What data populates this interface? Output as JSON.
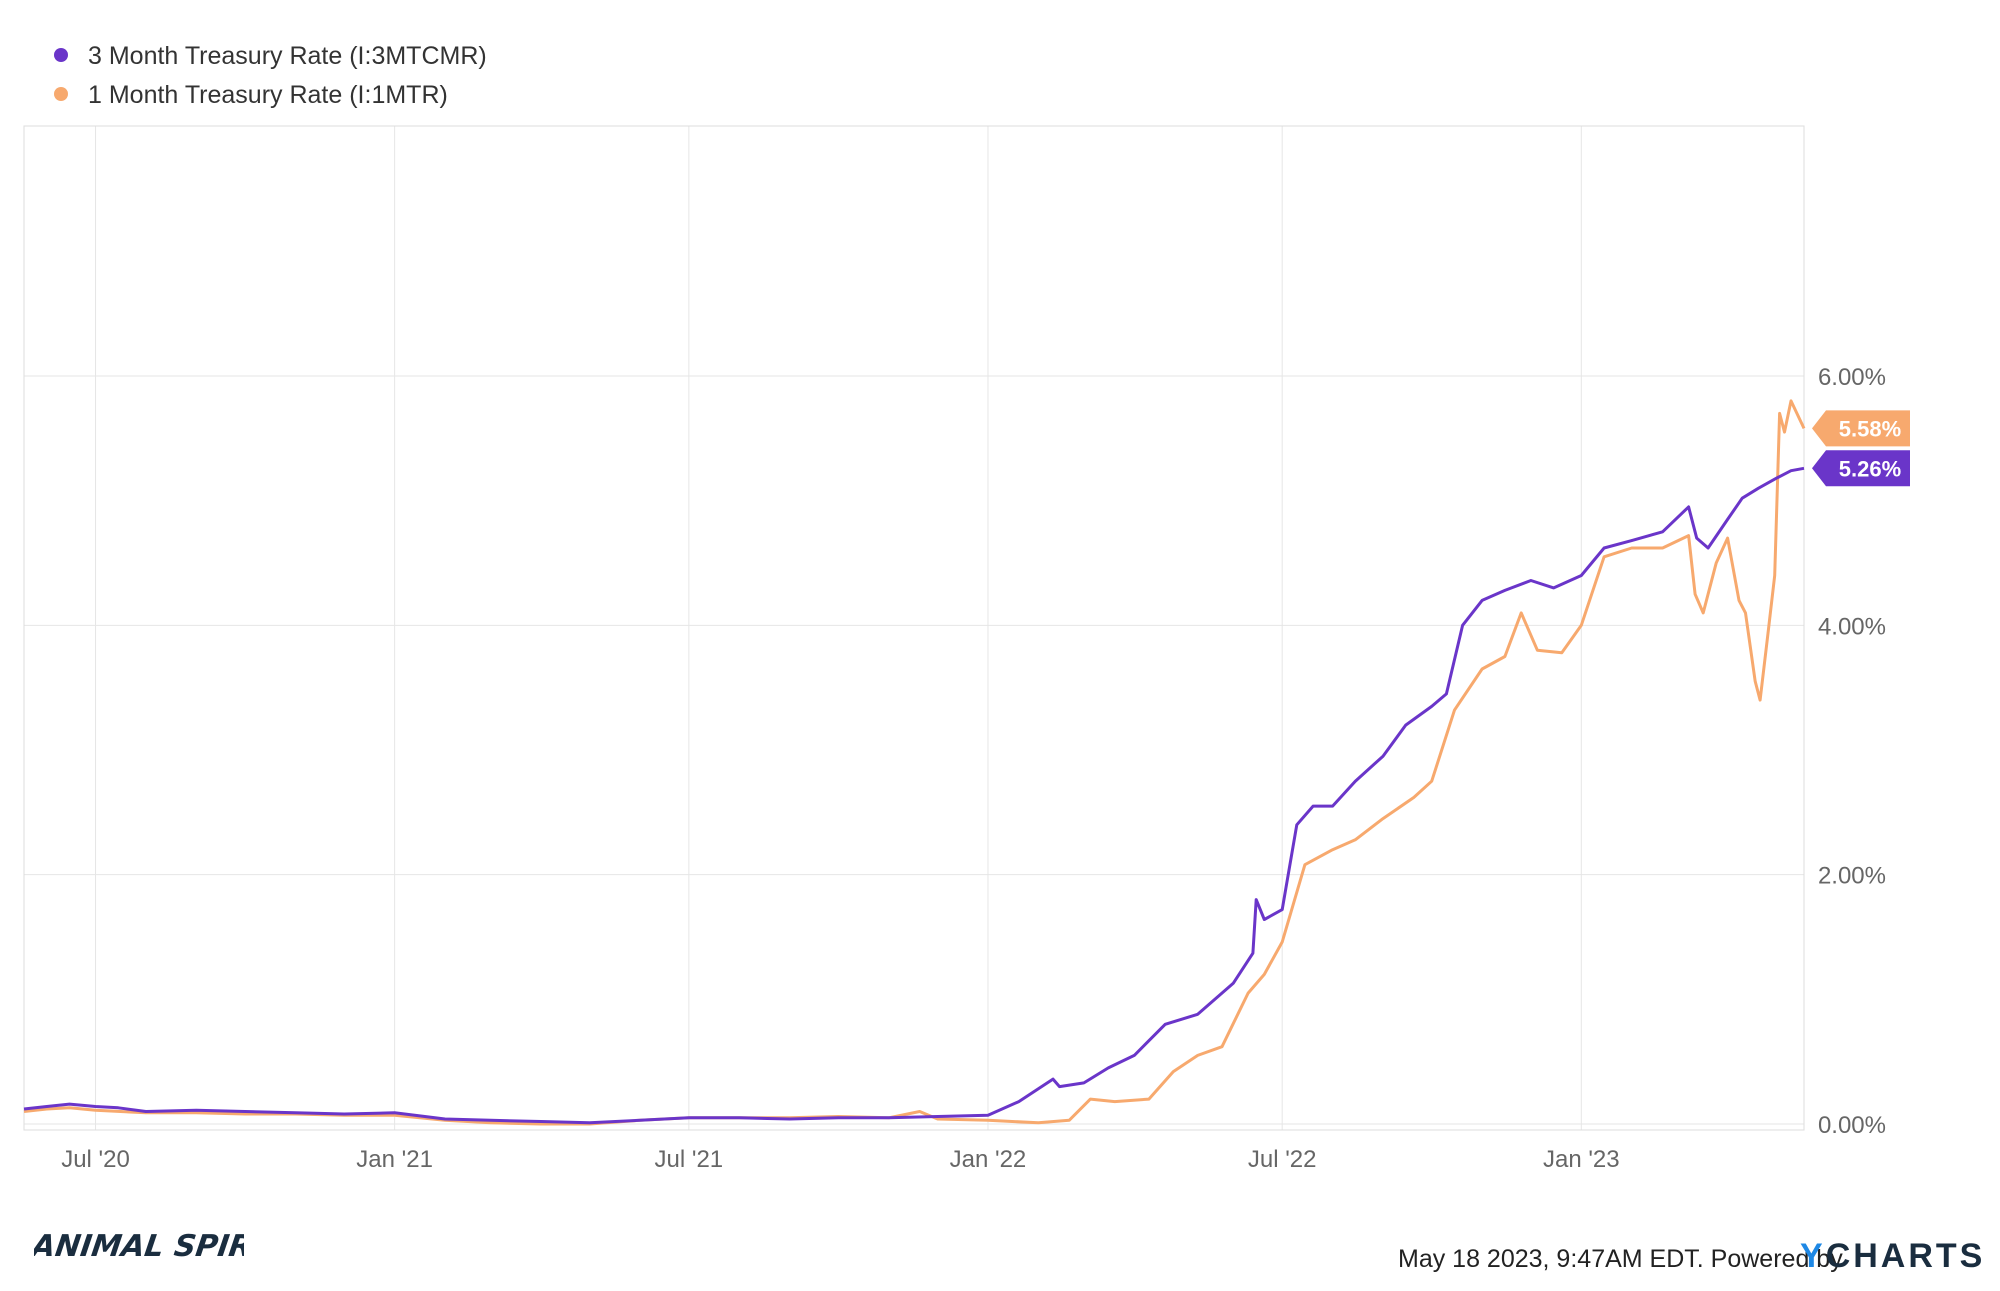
{
  "chart_data": {
    "type": "line",
    "title": "",
    "xlabel": "",
    "ylabel": "",
    "xlim": [
      "2020-05-18",
      "2023-05-18"
    ],
    "ylim": [
      0,
      8
    ],
    "y_ticks": [
      0,
      2,
      4,
      6
    ],
    "y_tick_labels": [
      "0.00%",
      "2.00%",
      "4.00%",
      "6.00%"
    ],
    "x_ticks": [
      "2020-07-01",
      "2021-01-01",
      "2021-07-01",
      "2022-01-01",
      "2022-07-01",
      "2023-01-01"
    ],
    "x_tick_labels": [
      "Jul '20",
      "Jan '21",
      "Jul '21",
      "Jan '22",
      "Jul '22",
      "Jan '23"
    ],
    "grid": true,
    "legend_position": "top-left",
    "series": [
      {
        "name": "3 Month Treasury Rate (I:3MTCMR)",
        "color": "#6a35c9",
        "end_label": "5.26%",
        "points": [
          [
            "2020-05-18",
            0.12
          ],
          [
            "2020-06-01",
            0.14
          ],
          [
            "2020-06-15",
            0.16
          ],
          [
            "2020-07-01",
            0.14
          ],
          [
            "2020-07-15",
            0.13
          ],
          [
            "2020-08-01",
            0.1
          ],
          [
            "2020-09-01",
            0.11
          ],
          [
            "2020-10-01",
            0.1
          ],
          [
            "2020-11-01",
            0.09
          ],
          [
            "2020-12-01",
            0.08
          ],
          [
            "2021-01-01",
            0.09
          ],
          [
            "2021-02-01",
            0.04
          ],
          [
            "2021-03-01",
            0.03
          ],
          [
            "2021-04-01",
            0.02
          ],
          [
            "2021-05-01",
            0.01
          ],
          [
            "2021-06-01",
            0.03
          ],
          [
            "2021-07-01",
            0.05
          ],
          [
            "2021-08-01",
            0.05
          ],
          [
            "2021-09-01",
            0.04
          ],
          [
            "2021-10-01",
            0.05
          ],
          [
            "2021-11-01",
            0.05
          ],
          [
            "2021-12-01",
            0.06
          ],
          [
            "2022-01-01",
            0.07
          ],
          [
            "2022-01-20",
            0.18
          ],
          [
            "2022-02-10",
            0.36
          ],
          [
            "2022-02-14",
            0.3
          ],
          [
            "2022-03-01",
            0.33
          ],
          [
            "2022-03-16",
            0.45
          ],
          [
            "2022-04-01",
            0.55
          ],
          [
            "2022-04-20",
            0.8
          ],
          [
            "2022-05-10",
            0.88
          ],
          [
            "2022-06-01",
            1.13
          ],
          [
            "2022-06-13",
            1.37
          ],
          [
            "2022-06-15",
            1.8
          ],
          [
            "2022-06-20",
            1.64
          ],
          [
            "2022-07-01",
            1.72
          ],
          [
            "2022-07-10",
            2.4
          ],
          [
            "2022-07-20",
            2.55
          ],
          [
            "2022-08-01",
            2.55
          ],
          [
            "2022-08-15",
            2.75
          ],
          [
            "2022-09-01",
            2.95
          ],
          [
            "2022-09-15",
            3.2
          ],
          [
            "2022-10-01",
            3.35
          ],
          [
            "2022-10-10",
            3.45
          ],
          [
            "2022-10-20",
            4.0
          ],
          [
            "2022-11-01",
            4.2
          ],
          [
            "2022-11-15",
            4.28
          ],
          [
            "2022-12-01",
            4.36
          ],
          [
            "2022-12-15",
            4.3
          ],
          [
            "2023-01-01",
            4.4
          ],
          [
            "2023-01-15",
            4.62
          ],
          [
            "2023-02-01",
            4.68
          ],
          [
            "2023-02-20",
            4.75
          ],
          [
            "2023-03-08",
            4.95
          ],
          [
            "2023-03-13",
            4.7
          ],
          [
            "2023-03-20",
            4.62
          ],
          [
            "2023-04-01",
            4.85
          ],
          [
            "2023-04-10",
            5.02
          ],
          [
            "2023-04-20",
            5.1
          ],
          [
            "2023-05-01",
            5.18
          ],
          [
            "2023-05-10",
            5.24
          ],
          [
            "2023-05-18",
            5.26
          ]
        ]
      },
      {
        "name": "1 Month Treasury Rate (I:1MTR)",
        "color": "#f7a96e",
        "end_label": "5.58%",
        "points": [
          [
            "2020-05-18",
            0.1
          ],
          [
            "2020-06-01",
            0.12
          ],
          [
            "2020-06-15",
            0.13
          ],
          [
            "2020-07-01",
            0.11
          ],
          [
            "2020-08-01",
            0.09
          ],
          [
            "2020-09-01",
            0.09
          ],
          [
            "2020-10-01",
            0.08
          ],
          [
            "2020-11-01",
            0.08
          ],
          [
            "2020-12-01",
            0.07
          ],
          [
            "2021-01-01",
            0.07
          ],
          [
            "2021-02-01",
            0.03
          ],
          [
            "2021-03-01",
            0.01
          ],
          [
            "2021-04-01",
            0.0
          ],
          [
            "2021-05-01",
            0.0
          ],
          [
            "2021-06-01",
            0.03
          ],
          [
            "2021-07-01",
            0.05
          ],
          [
            "2021-08-01",
            0.05
          ],
          [
            "2021-09-01",
            0.05
          ],
          [
            "2021-10-01",
            0.06
          ],
          [
            "2021-11-01",
            0.05
          ],
          [
            "2021-11-20",
            0.1
          ],
          [
            "2021-12-01",
            0.04
          ],
          [
            "2022-01-01",
            0.03
          ],
          [
            "2022-02-01",
            0.01
          ],
          [
            "2022-02-20",
            0.03
          ],
          [
            "2022-03-05",
            0.2
          ],
          [
            "2022-03-20",
            0.18
          ],
          [
            "2022-04-10",
            0.2
          ],
          [
            "2022-04-25",
            0.42
          ],
          [
            "2022-05-10",
            0.55
          ],
          [
            "2022-05-25",
            0.62
          ],
          [
            "2022-06-10",
            1.05
          ],
          [
            "2022-06-20",
            1.2
          ],
          [
            "2022-07-01",
            1.46
          ],
          [
            "2022-07-15",
            2.08
          ],
          [
            "2022-08-01",
            2.2
          ],
          [
            "2022-08-15",
            2.28
          ],
          [
            "2022-09-01",
            2.45
          ],
          [
            "2022-09-20",
            2.62
          ],
          [
            "2022-10-01",
            2.75
          ],
          [
            "2022-10-15",
            3.32
          ],
          [
            "2022-11-01",
            3.65
          ],
          [
            "2022-11-15",
            3.75
          ],
          [
            "2022-11-25",
            4.1
          ],
          [
            "2022-12-05",
            3.8
          ],
          [
            "2022-12-20",
            3.78
          ],
          [
            "2023-01-01",
            4.0
          ],
          [
            "2023-01-15",
            4.55
          ],
          [
            "2023-02-01",
            4.62
          ],
          [
            "2023-02-20",
            4.62
          ],
          [
            "2023-03-08",
            4.72
          ],
          [
            "2023-03-12",
            4.25
          ],
          [
            "2023-03-17",
            4.1
          ],
          [
            "2023-03-25",
            4.5
          ],
          [
            "2023-04-01",
            4.7
          ],
          [
            "2023-04-08",
            4.2
          ],
          [
            "2023-04-12",
            4.1
          ],
          [
            "2023-04-18",
            3.55
          ],
          [
            "2023-04-21",
            3.4
          ],
          [
            "2023-04-26",
            3.95
          ],
          [
            "2023-04-30",
            4.4
          ],
          [
            "2023-05-03",
            5.7
          ],
          [
            "2023-05-06",
            5.55
          ],
          [
            "2023-05-10",
            5.8
          ],
          [
            "2023-05-18",
            5.58
          ]
        ]
      }
    ]
  },
  "watermark": {
    "text": "ANIMAL SPIRITS"
  },
  "footer": {
    "timestamp": "May 18 2023, 9:47AM EDT.",
    "powered_by": "Powered by",
    "brand_y": "Y",
    "brand_rest": "CHARTS"
  }
}
